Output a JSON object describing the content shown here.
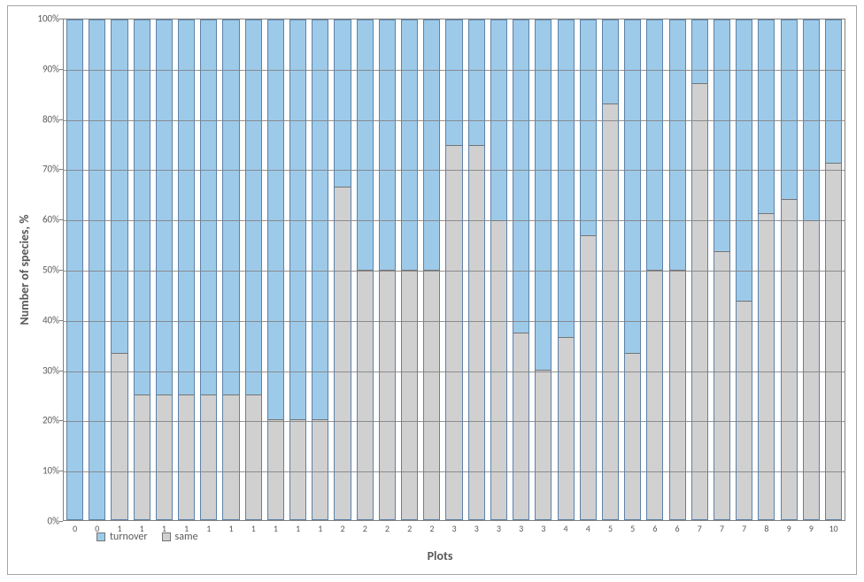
{
  "chart": {
    "type": "stacked-bar-100pct",
    "xlabel": "Plots",
    "ylabel": "Number of species, %",
    "xlabel_fontsize": 14,
    "ylabel_fontsize": 14,
    "label_fontweight": "bold",
    "tick_fontsize": 11,
    "xcat_fontsize": 10,
    "plot_border_color": "#808080",
    "grid_color": "#808080",
    "frame_border_color": "#a6a6a6",
    "background_color": "#ffffff",
    "bar_border_color": "#5d82a8",
    "same_border_color": "#747474",
    "bar_width_ratio": 0.76,
    "ylim": [
      0,
      100
    ],
    "ytick_step": 10,
    "ytick_labels": [
      "0%",
      "10%",
      "20%",
      "30%",
      "40%",
      "50%",
      "60%",
      "70%",
      "80%",
      "90%",
      "100%"
    ],
    "series": [
      {
        "name": "turnover",
        "color": "#9ecae9"
      },
      {
        "name": "same",
        "color": "#d0d0d0"
      }
    ],
    "legend_position": "bottom-left",
    "categories": [
      "0",
      "0",
      "1",
      "1",
      "1",
      "1",
      "1",
      "1",
      "1",
      "1",
      "1",
      "1",
      "2",
      "2",
      "2",
      "2",
      "2",
      "3",
      "3",
      "3",
      "3",
      "3",
      "4",
      "4",
      "5",
      "5",
      "6",
      "6",
      "7",
      "7",
      "7",
      "8",
      "9",
      "9",
      "10"
    ],
    "same_pct": [
      0,
      0,
      33.3,
      25,
      25,
      25,
      25,
      25,
      25,
      20,
      20,
      20,
      66.7,
      50,
      50,
      50,
      50,
      75,
      75,
      60,
      37.5,
      30,
      36.5,
      57,
      83.3,
      33.3,
      50,
      50,
      87.5,
      53.8,
      43.8,
      61.3,
      64.1,
      60,
      71.4
    ],
    "turnover_pct": [
      100,
      100,
      66.7,
      75,
      75,
      75,
      75,
      75,
      75,
      80,
      80,
      80,
      33.3,
      50,
      50,
      50,
      50,
      25,
      25,
      40,
      62.5,
      70,
      63.5,
      43,
      16.7,
      66.7,
      50,
      50,
      12.5,
      46.2,
      56.2,
      38.7,
      35.9,
      40,
      28.6
    ]
  }
}
